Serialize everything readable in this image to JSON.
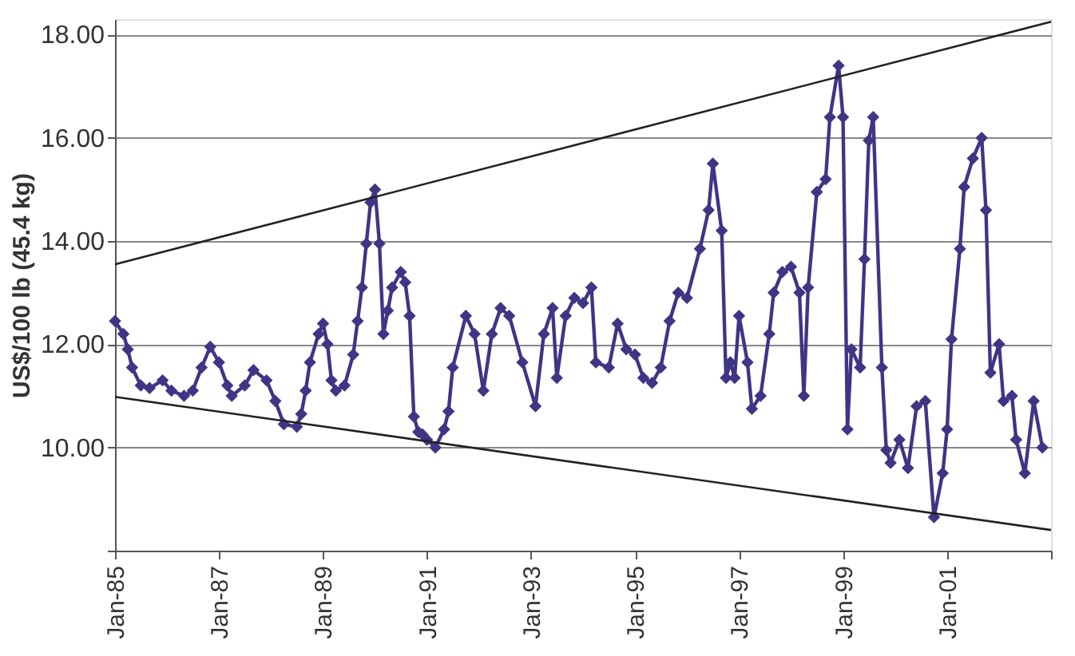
{
  "chart_data": {
    "type": "line",
    "ylabel": "US$/100 lb (45.4 kg)",
    "xlim": [
      "1985-01",
      "2003-01"
    ],
    "xticks": [
      {
        "value": "1985-01",
        "label": "Jan-85"
      },
      {
        "value": "1987-01",
        "label": "Jan-87"
      },
      {
        "value": "1989-01",
        "label": "Jan-89"
      },
      {
        "value": "1991-01",
        "label": "Jan-91"
      },
      {
        "value": "1993-01",
        "label": "Jan-93"
      },
      {
        "value": "1995-01",
        "label": "Jan-95"
      },
      {
        "value": "1997-01",
        "label": "Jan-97"
      },
      {
        "value": "1999-01",
        "label": "Jan-99"
      },
      {
        "value": "2001-01",
        "label": "Jan-01"
      },
      {
        "value": "2003-01",
        "label": null
      }
    ],
    "ylim": [
      8,
      18.3
    ],
    "yticks": [
      {
        "value": 8,
        "label": null
      },
      {
        "value": 10,
        "label": "10.00"
      },
      {
        "value": 12,
        "label": "12.00"
      },
      {
        "value": 14,
        "label": "14.00"
      },
      {
        "value": 16,
        "label": "16.00"
      },
      {
        "value": 18,
        "label": "18.00"
      }
    ],
    "grid": "y",
    "series": [
      {
        "color": "#3f3585",
        "marker": "diamond",
        "line_style": "solid",
        "x": [
          "1985-01",
          "1985-03",
          "1985-04",
          "1985-05",
          "1985-07",
          "1985-09",
          "1985-12",
          "1986-02",
          "1986-05",
          "1986-07",
          "1986-09",
          "1986-11",
          "1987-01",
          "1987-03",
          "1987-04",
          "1987-07",
          "1987-09",
          "1987-12",
          "1988-02",
          "1988-04",
          "1988-07",
          "1988-08",
          "1988-09",
          "1988-10",
          "1988-12",
          "1989-01",
          "1989-02",
          "1989-03",
          "1989-04",
          "1989-06",
          "1989-08",
          "1989-09",
          "1989-10",
          "1989-11",
          "1989-12",
          "1990-01",
          "1990-02",
          "1990-03",
          "1990-04",
          "1990-05",
          "1990-07",
          "1990-08",
          "1990-09",
          "1990-10",
          "1990-11",
          "1990-12",
          "1991-01",
          "1991-03",
          "1991-05",
          "1991-06",
          "1991-07",
          "1991-10",
          "1991-12",
          "1992-02",
          "1992-04",
          "1992-06",
          "1992-08",
          "1992-11",
          "1993-02",
          "1993-04",
          "1993-06",
          "1993-07",
          "1993-09",
          "1993-11",
          "1994-01",
          "1994-03",
          "1994-04",
          "1994-07",
          "1994-09",
          "1994-11",
          "1995-01",
          "1995-03",
          "1995-05",
          "1995-07",
          "1995-09",
          "1995-11",
          "1996-01",
          "1996-04",
          "1996-06",
          "1996-07",
          "1996-09",
          "1996-10",
          "1996-11",
          "1996-12",
          "1997-01",
          "1997-03",
          "1997-04",
          "1997-06",
          "1997-08",
          "1997-09",
          "1997-11",
          "1998-01",
          "1998-03",
          "1998-04",
          "1998-05",
          "1998-07",
          "1998-09",
          "1998-10",
          "1998-12",
          "1999-01",
          "1999-02",
          "1999-03",
          "1999-05",
          "1999-06",
          "1999-07",
          "1999-08",
          "1999-10",
          "1999-11",
          "1999-12",
          "2000-02",
          "2000-04",
          "2000-06",
          "2000-08",
          "2000-10",
          "2000-12",
          "2001-01",
          "2001-02",
          "2001-04",
          "2001-05",
          "2001-07",
          "2001-09",
          "2001-10",
          "2001-11",
          "2002-01",
          "2002-02",
          "2002-04",
          "2002-05",
          "2002-07",
          "2002-09",
          "2002-11"
        ],
        "values": [
          12.45,
          12.2,
          11.9,
          11.55,
          11.2,
          11.15,
          11.3,
          11.1,
          11.0,
          11.1,
          11.55,
          11.95,
          11.65,
          11.2,
          11.0,
          11.2,
          11.5,
          11.3,
          10.9,
          10.45,
          10.4,
          10.65,
          11.1,
          11.65,
          12.2,
          12.4,
          12.0,
          11.3,
          11.1,
          11.2,
          11.8,
          12.45,
          13.1,
          13.95,
          14.75,
          15.0,
          13.95,
          12.2,
          12.65,
          13.1,
          13.4,
          13.2,
          12.55,
          10.6,
          10.3,
          10.25,
          10.15,
          10.0,
          10.35,
          10.7,
          11.55,
          12.55,
          12.2,
          11.1,
          12.2,
          12.7,
          12.55,
          11.65,
          10.8,
          12.2,
          12.7,
          11.35,
          12.55,
          12.9,
          12.8,
          13.1,
          11.65,
          11.55,
          12.4,
          11.9,
          11.8,
          11.35,
          11.25,
          11.55,
          12.45,
          13.0,
          12.9,
          13.85,
          14.6,
          15.5,
          14.2,
          11.35,
          11.65,
          11.35,
          12.55,
          11.65,
          10.75,
          11.0,
          12.2,
          13.0,
          13.4,
          13.5,
          13.0,
          11.0,
          13.1,
          14.95,
          15.2,
          16.4,
          17.4,
          16.4,
          10.35,
          11.9,
          11.55,
          13.65,
          15.95,
          16.4,
          11.55,
          9.95,
          9.7,
          10.15,
          9.6,
          10.8,
          10.9,
          8.65,
          9.5,
          10.35,
          12.1,
          13.85,
          15.05,
          15.6,
          16.0,
          14.6,
          11.45,
          12.0,
          10.9,
          11.0,
          10.15,
          9.5,
          10.9,
          10.0
        ]
      },
      {
        "color": "#222222",
        "marker": "none",
        "line_style": "solid",
        "x": [
          "1985-01",
          "2003-01"
        ],
        "values": [
          13.55,
          18.25
        ]
      },
      {
        "color": "#222222",
        "marker": "none",
        "line_style": "solid",
        "x": [
          "1985-01",
          "2003-01"
        ],
        "values": [
          10.98,
          8.4
        ]
      }
    ]
  }
}
